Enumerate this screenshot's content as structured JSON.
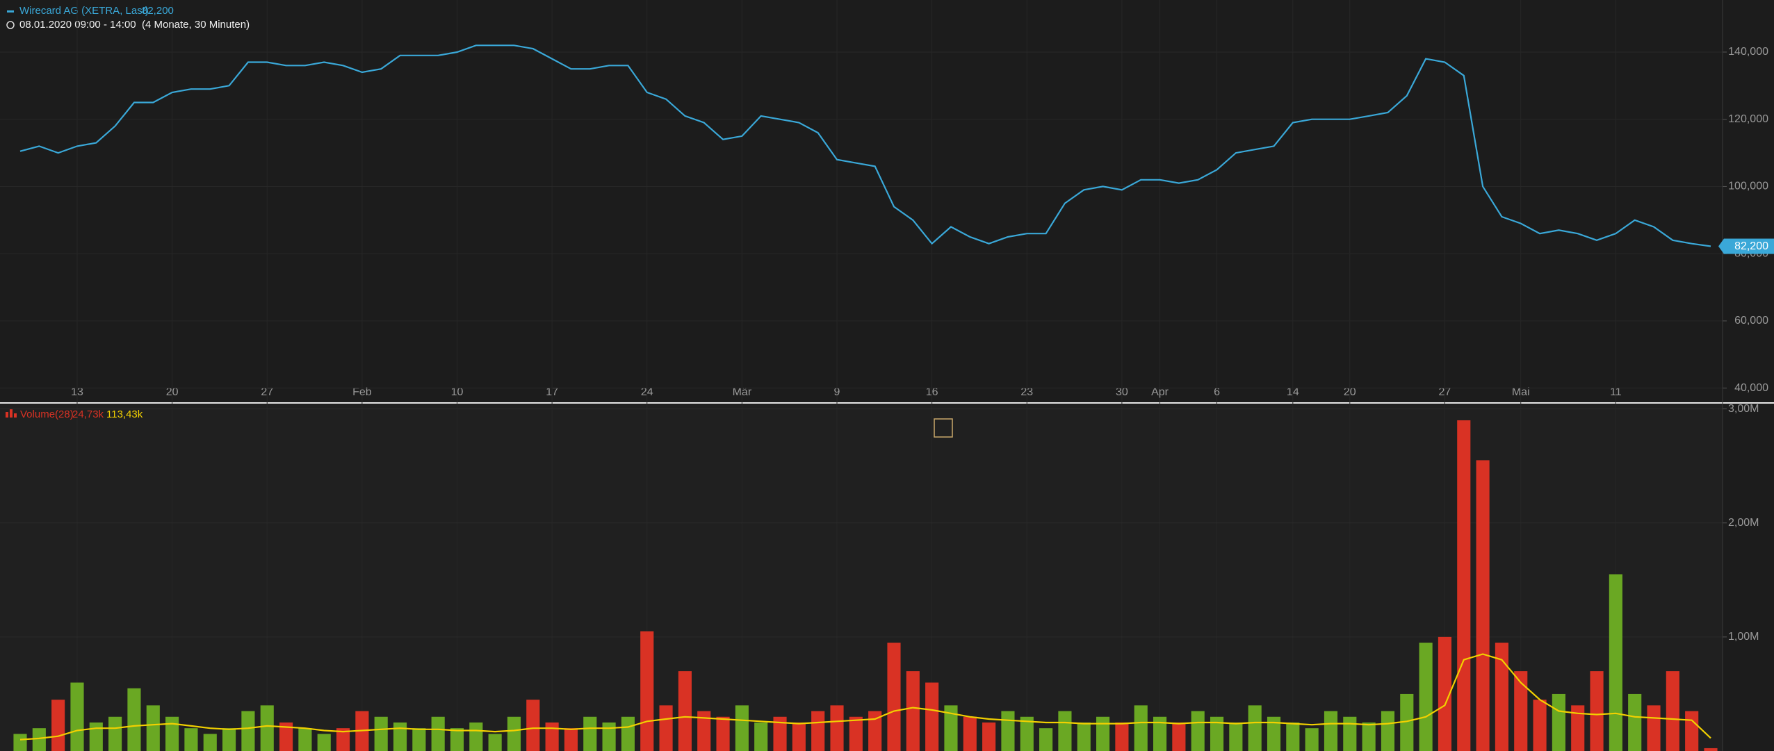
{
  "chart_data": [
    {
      "type": "line",
      "title": "Wirecard AG (XETRA, Last)",
      "subtitle": "08.01.2020 09:00 - 14:00  (4 Monate, 30 Minuten)",
      "categories": [
        null,
        null,
        null,
        "13",
        null,
        null,
        null,
        null,
        "20",
        null,
        null,
        null,
        null,
        "27",
        null,
        null,
        null,
        null,
        "Feb",
        null,
        null,
        null,
        null,
        "10",
        null,
        null,
        null,
        null,
        "17",
        null,
        null,
        null,
        null,
        "24",
        null,
        null,
        null,
        null,
        "Mär",
        null,
        null,
        null,
        null,
        "9",
        null,
        null,
        null,
        null,
        "16",
        null,
        null,
        null,
        null,
        "23",
        null,
        null,
        null,
        null,
        "30",
        null,
        "Apr",
        null,
        null,
        "6",
        null,
        null,
        null,
        "14",
        null,
        null,
        "20",
        null,
        null,
        null,
        null,
        "27",
        null,
        null,
        null,
        "Mai",
        null,
        null,
        null,
        null,
        "11",
        null,
        null,
        null,
        null,
        null
      ],
      "series": [
        {
          "name": "Wirecard AG (XETRA, Last)",
          "color": "#3aa8d8",
          "last_label": "82,200",
          "values": [
            110.5,
            112,
            110,
            112,
            113,
            118,
            125,
            125,
            128,
            129,
            129,
            130,
            137,
            137,
            136,
            136,
            137,
            136,
            134,
            135,
            139,
            139,
            139,
            140,
            142,
            142,
            142,
            141,
            138,
            135,
            135,
            136,
            136,
            128,
            126,
            121,
            119,
            114,
            115,
            121,
            120,
            119,
            116,
            108,
            107,
            106,
            94,
            90,
            83,
            88,
            85,
            83,
            85,
            86,
            86,
            95,
            99,
            100,
            99,
            102,
            102,
            101,
            102,
            105,
            110,
            111,
            112,
            119,
            120,
            120,
            120,
            121,
            122,
            127,
            138,
            137,
            133,
            100,
            91,
            89,
            86,
            87,
            86,
            84,
            86,
            90,
            88,
            84,
            83,
            82.2
          ]
        }
      ],
      "ylim": [
        36,
        155.5
      ],
      "yticks": [
        {
          "value": 140,
          "label": "140,000"
        },
        {
          "value": 120,
          "label": "120,000"
        },
        {
          "value": 100,
          "label": "100,000"
        },
        {
          "value": 80,
          "label": "80,000"
        },
        {
          "value": 60,
          "label": "60,000"
        },
        {
          "value": 40,
          "label": "40,000"
        }
      ],
      "grid": true
    },
    {
      "type": "bar",
      "title": "Volume(28)",
      "legend_values": [
        "24,73k",
        "113,43k"
      ],
      "up_color": "#6aa823",
      "down_color": "#d93224",
      "average_color": "#f2d000",
      "values": [
        150000,
        200000,
        450000,
        600000,
        250000,
        300000,
        550000,
        400000,
        300000,
        200000,
        150000,
        200000,
        350000,
        400000,
        250000,
        200000,
        150000,
        200000,
        350000,
        300000,
        250000,
        200000,
        300000,
        200000,
        250000,
        150000,
        300000,
        450000,
        250000,
        200000,
        300000,
        250000,
        300000,
        1050000,
        400000,
        700000,
        350000,
        300000,
        400000,
        250000,
        300000,
        250000,
        350000,
        400000,
        300000,
        350000,
        950000,
        700000,
        600000,
        400000,
        300000,
        250000,
        350000,
        300000,
        200000,
        350000,
        250000,
        300000,
        250000,
        400000,
        300000,
        250000,
        350000,
        300000,
        250000,
        400000,
        300000,
        250000,
        200000,
        350000,
        300000,
        250000,
        350000,
        500000,
        950000,
        1000000,
        2900000,
        2550000,
        950000,
        700000,
        450000,
        500000,
        400000,
        700000,
        1550000,
        500000,
        400000,
        700000,
        350000,
        24730
      ],
      "average": [
        100000,
        110000,
        130000,
        180000,
        200000,
        200000,
        220000,
        230000,
        240000,
        220000,
        200000,
        190000,
        200000,
        220000,
        210000,
        200000,
        180000,
        170000,
        180000,
        190000,
        200000,
        190000,
        190000,
        180000,
        180000,
        170000,
        180000,
        200000,
        200000,
        190000,
        200000,
        200000,
        210000,
        260000,
        280000,
        300000,
        290000,
        280000,
        270000,
        260000,
        250000,
        240000,
        250000,
        260000,
        270000,
        280000,
        350000,
        380000,
        360000,
        330000,
        300000,
        280000,
        270000,
        260000,
        250000,
        250000,
        240000,
        240000,
        240000,
        250000,
        250000,
        240000,
        250000,
        250000,
        240000,
        250000,
        250000,
        240000,
        230000,
        240000,
        240000,
        230000,
        240000,
        260000,
        300000,
        400000,
        800000,
        850000,
        800000,
        600000,
        450000,
        350000,
        330000,
        320000,
        330000,
        300000,
        290000,
        280000,
        270000,
        113430
      ],
      "ylim": [
        0,
        3040000
      ],
      "yticks": [
        {
          "value": 3000000,
          "label": "3,00M"
        },
        {
          "value": 2000000,
          "label": "2,00M"
        },
        {
          "value": 1000000,
          "label": "1,00M"
        }
      ],
      "grid": true
    }
  ]
}
